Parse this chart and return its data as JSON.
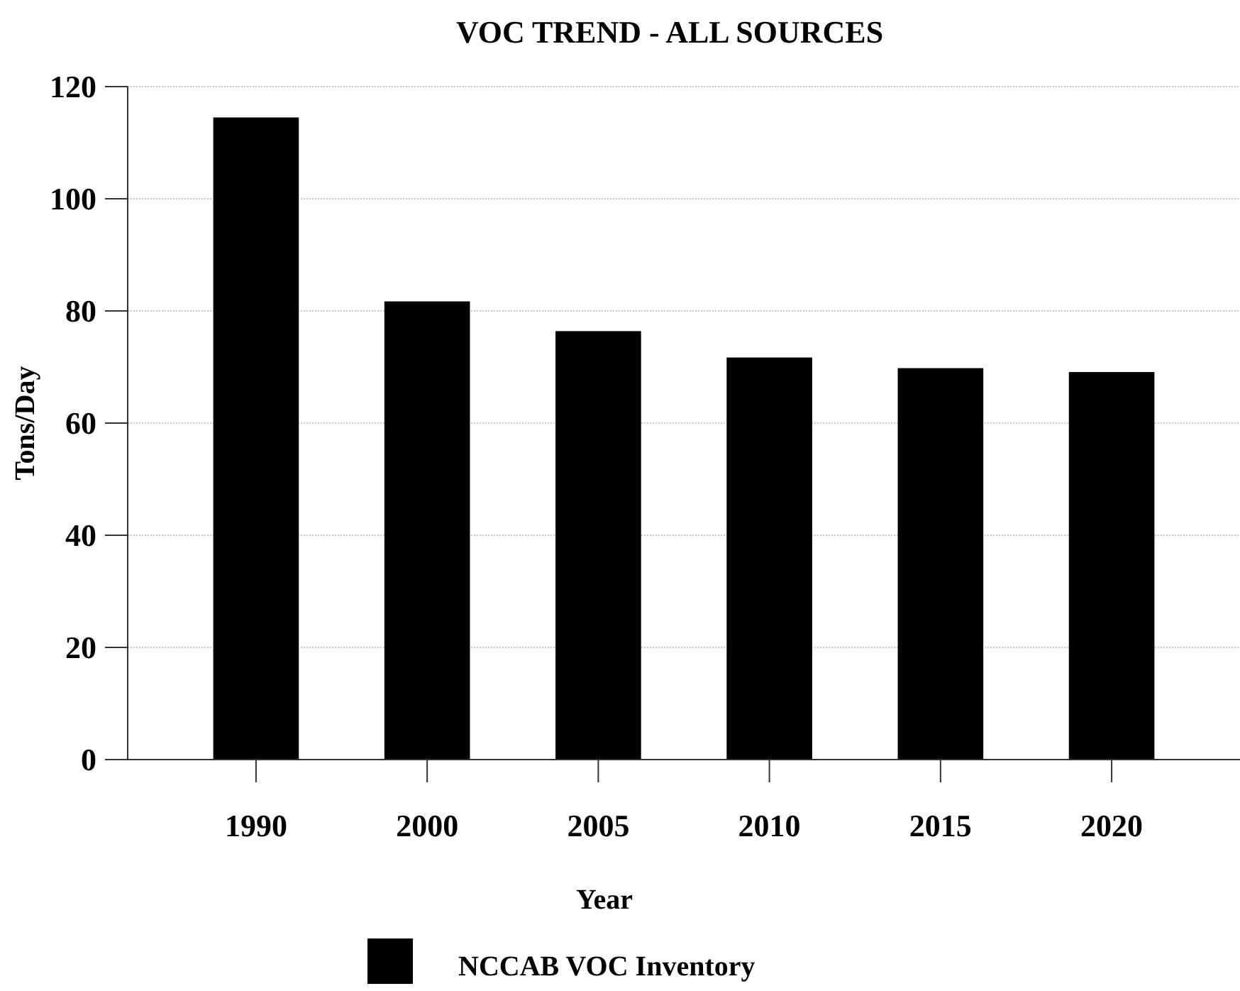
{
  "chart_data": {
    "type": "bar",
    "title": "VOC TREND - ALL SOURCES",
    "xlabel": "Year",
    "ylabel": "Tons/Day",
    "categories": [
      "1990",
      "2000",
      "2005",
      "2010",
      "2015",
      "2020"
    ],
    "series": [
      {
        "name": "NCCAB VOC Inventory",
        "color": "#000000",
        "values": [
          114.5,
          81.7,
          76.4,
          71.7,
          69.8,
          69.1
        ]
      }
    ],
    "ylim": [
      0,
      120
    ],
    "yticks": [
      0,
      20,
      40,
      60,
      80,
      100,
      120
    ],
    "grid": "y",
    "legend": "bottom"
  }
}
